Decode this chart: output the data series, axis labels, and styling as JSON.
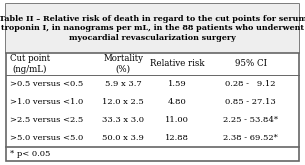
{
  "title_line1": "Table II – Relative risk of death in regard to the cut points for serum",
  "title_line2": "troponin I, in nanograms per mL, in the 88 patients who underwent",
  "title_line3": "myocardial revascularization surgery",
  "col_headers": [
    "Cut point\n(ng/mL)",
    "Mortality\n(%)",
    "Relative risk",
    "95% CI"
  ],
  "rows": [
    [
      ">0.5 versus <0.5",
      "5.9 x 3.7",
      "1.59",
      "0.28 -   9.12"
    ],
    [
      ">1.0 versus <1.0",
      "12.0 x 2.5",
      "4.80",
      "0.85 - 27.13"
    ],
    [
      ">2.5 versus <2.5",
      "33.3 x 3.0",
      "11.00",
      "2.25 - 53.84*"
    ],
    [
      ">5.0 versus <5.0",
      "50.0 x 3.9",
      "12.88",
      "2.38 - 69.52*"
    ]
  ],
  "footnote": "* p< 0.05",
  "table_bg": "#ffffff",
  "border_color": "#666666",
  "title_fontsize": 5.8,
  "header_fontsize": 6.2,
  "cell_fontsize": 6.0,
  "footnote_fontsize": 6.0
}
